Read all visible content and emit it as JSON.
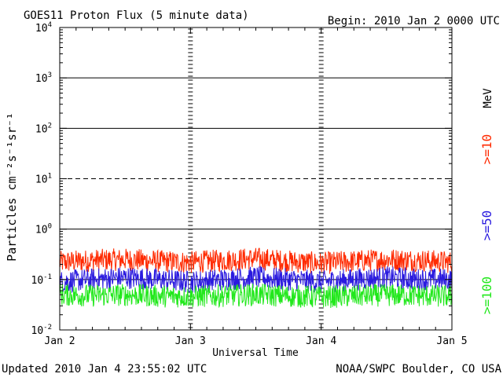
{
  "header": {
    "title": "GOES11 Proton Flux (5 minute data)",
    "begin": "Begin: 2010 Jan 2 0000 UTC"
  },
  "footer": {
    "updated": "Updated 2010 Jan  4 23:55:02 UTC",
    "credit": "NOAA/SWPC Boulder, CO USA"
  },
  "right_labels": {
    "unit": "MeV",
    "ge10": ">=10",
    "ge50": ">=50",
    "ge100": ">=100"
  },
  "colors": {
    "ge10": "#ff2a00",
    "ge50": "#2a1adf",
    "ge100": "#22e81c",
    "grid": "#000000",
    "axis": "#000000"
  },
  "chart_data": {
    "type": "line",
    "title": "GOES11 Proton Flux (5 minute data)",
    "xlabel": "Universal Time",
    "ylabel": "Particles cm⁻²s⁻¹sr⁻¹",
    "yscale": "log",
    "ylim": [
      0.01,
      10000
    ],
    "y_ticks": [
      {
        "base": "10",
        "exp": "-2"
      },
      {
        "base": "10",
        "exp": "-1"
      },
      {
        "base": "10",
        "exp": "0"
      },
      {
        "base": "10",
        "exp": "1"
      },
      {
        "base": "10",
        "exp": "2"
      },
      {
        "base": "10",
        "exp": "3"
      },
      {
        "base": "10",
        "exp": "4"
      }
    ],
    "x_ticks": [
      "Jan 2",
      "Jan 3",
      "Jan 4",
      "Jan 5"
    ],
    "x_range_days": [
      0,
      3
    ],
    "grid": true,
    "series": [
      {
        "name": ">=10",
        "color": "#ff2a00",
        "x": [
          0,
          0.25,
          0.5,
          0.75,
          1.0,
          1.25,
          1.5,
          1.75,
          2.0,
          2.25,
          2.5,
          2.75,
          3.0
        ],
        "values": [
          0.22,
          0.24,
          0.25,
          0.23,
          0.22,
          0.24,
          0.26,
          0.23,
          0.21,
          0.23,
          0.25,
          0.24,
          0.22
        ]
      },
      {
        "name": ">=50",
        "color": "#2a1adf",
        "x": [
          0,
          0.25,
          0.5,
          0.75,
          1.0,
          1.25,
          1.5,
          1.75,
          2.0,
          2.25,
          2.5,
          2.75,
          3.0
        ],
        "values": [
          0.09,
          0.1,
          0.11,
          0.1,
          0.09,
          0.1,
          0.11,
          0.1,
          0.09,
          0.1,
          0.11,
          0.1,
          0.1
        ]
      },
      {
        "name": ">=100",
        "color": "#22e81c",
        "x": [
          0,
          0.25,
          0.5,
          0.75,
          1.0,
          1.25,
          1.5,
          1.75,
          2.0,
          2.25,
          2.5,
          2.75,
          3.0
        ],
        "values": [
          0.05,
          0.048,
          0.05,
          0.047,
          0.046,
          0.048,
          0.05,
          0.047,
          0.045,
          0.047,
          0.049,
          0.048,
          0.046
        ]
      }
    ]
  }
}
